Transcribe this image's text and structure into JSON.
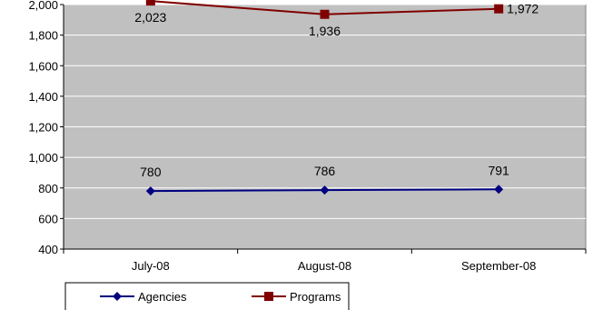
{
  "chart_data": {
    "type": "line",
    "categories": [
      "July-08",
      "August-08",
      "September-08"
    ],
    "series": [
      {
        "name": "Agencies",
        "values": [
          780,
          786,
          791
        ],
        "color": "#000080",
        "marker": "diamond"
      },
      {
        "name": "Programs",
        "values": [
          2023,
          1936,
          1972
        ],
        "color": "#800000",
        "marker": "square"
      }
    ],
    "data_labels": {
      "Agencies": [
        "780",
        "786",
        "791"
      ],
      "Programs": [
        "2,023",
        "1,936",
        "1,972"
      ]
    },
    "ylim": [
      400,
      2000
    ],
    "yticks": [
      400,
      600,
      800,
      1000,
      1200,
      1400,
      1600,
      1800,
      2000
    ],
    "ytick_labels": [
      "400",
      "600",
      "800",
      "1,000",
      "1,200",
      "1,400",
      "1,600",
      "1,800",
      "2,000"
    ],
    "plot_background": "#c0c0c0",
    "gridlines": true,
    "gridline_color": "#ffffff",
    "legend_position": "bottom-left",
    "title": "",
    "xlabel": "",
    "ylabel": ""
  }
}
